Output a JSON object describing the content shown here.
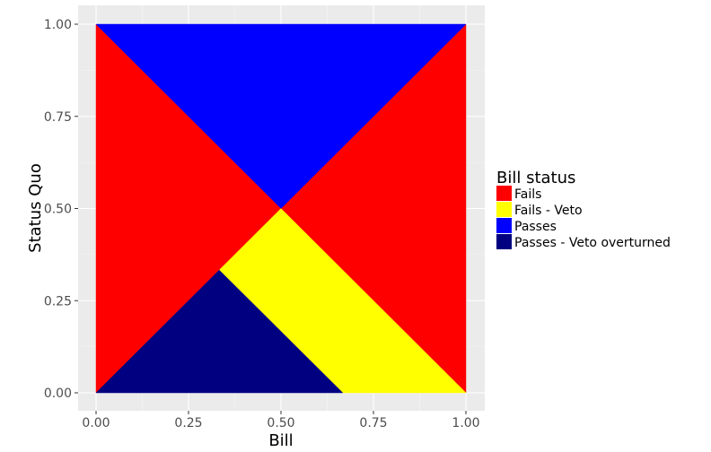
{
  "chart_data": {
    "type": "area",
    "title": "",
    "xlabel": "Bill",
    "ylabel": "Status Quo",
    "xlim": [
      0,
      1
    ],
    "ylim": [
      0,
      1
    ],
    "x_ticks": [
      "0.00",
      "0.25",
      "0.50",
      "0.75",
      "1.00"
    ],
    "y_ticks": [
      "0.00",
      "0.25",
      "0.50",
      "0.75",
      "1.00"
    ],
    "grid": true,
    "legend": {
      "title": "Bill status",
      "placement": "right",
      "entries": [
        {
          "label": "Fails",
          "color": "#FF0000"
        },
        {
          "label": "Fails - Veto",
          "color": "#FFFF00"
        },
        {
          "label": "Passes",
          "color": "#0000FF"
        },
        {
          "label": "Passes - Veto overturned",
          "color": "#000080"
        }
      ]
    },
    "regions": [
      {
        "status": "Fails",
        "color": "#FF0000",
        "vertices": [
          [
            0,
            0
          ],
          [
            0,
            1
          ],
          [
            0.5,
            0.5
          ],
          [
            0.333,
            0.333
          ]
        ]
      },
      {
        "status": "Fails",
        "color": "#FF0000",
        "vertices": [
          [
            1,
            0
          ],
          [
            1,
            1
          ],
          [
            0.5,
            0.5
          ]
        ]
      },
      {
        "status": "Passes",
        "color": "#0000FF",
        "vertices": [
          [
            0,
            1
          ],
          [
            1,
            1
          ],
          [
            0.5,
            0.5
          ]
        ]
      },
      {
        "status": "Fails - Veto",
        "color": "#FFFF00",
        "vertices": [
          [
            0.5,
            0.5
          ],
          [
            1,
            0
          ],
          [
            0.667,
            0
          ],
          [
            0.333,
            0.333
          ]
        ]
      },
      {
        "status": "Passes - Veto overturned",
        "color": "#000080",
        "vertices": [
          [
            0,
            0
          ],
          [
            0.333,
            0.333
          ],
          [
            0.667,
            0
          ]
        ]
      }
    ]
  }
}
